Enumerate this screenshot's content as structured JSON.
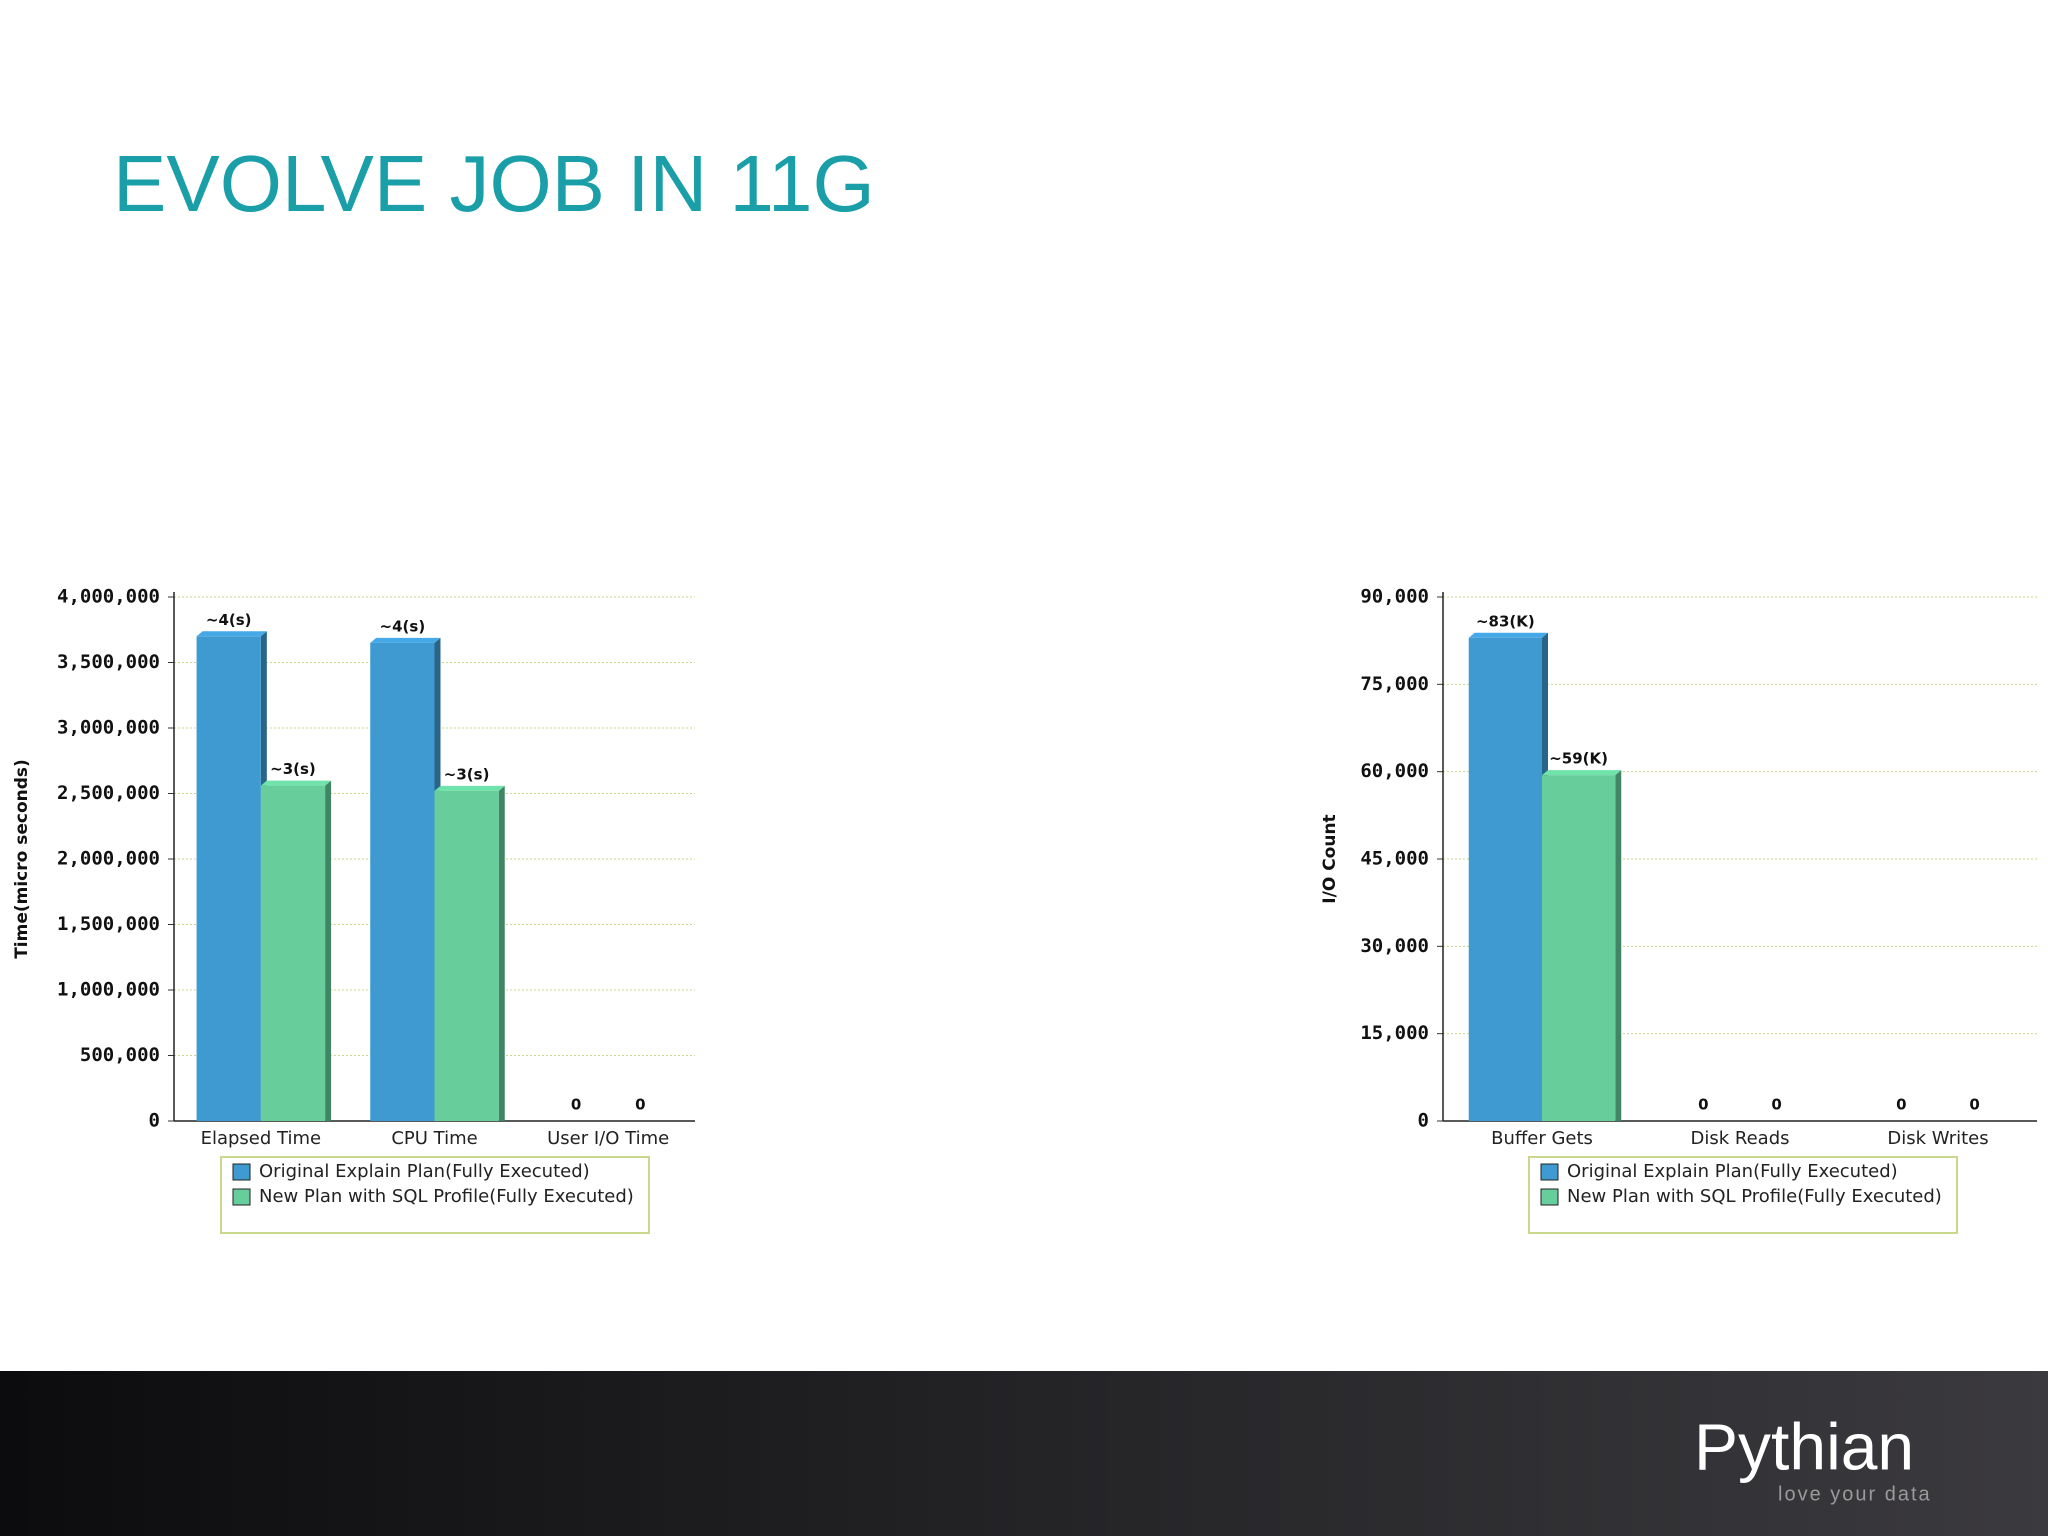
{
  "title": "EVOLVE JOB IN 11G",
  "chart_data": [
    {
      "type": "bar",
      "ylabel": "Time(micro seconds)",
      "categories": [
        "Elapsed Time",
        "CPU Time",
        "User I/O Time"
      ],
      "series": [
        {
          "name": "Original Explain Plan(Fully Executed)",
          "color": "#3f9ad2",
          "values": [
            3700000,
            3650000,
            0
          ],
          "value_labels": [
            "~4(s)",
            "~4(s)",
            "0"
          ]
        },
        {
          "name": "New Plan with SQL Profile(Fully Executed)",
          "color": "#66cd9b",
          "values": [
            2560000,
            2520000,
            0
          ],
          "value_labels": [
            "~3(s)",
            "~3(s)",
            "0"
          ]
        }
      ],
      "ylim": [
        0,
        4000000
      ],
      "yticks": [
        0,
        {
          "value": 500000,
          "label": "500,000"
        },
        {
          "value": 1000000,
          "label": "1,000,000"
        },
        {
          "value": 1500000,
          "label": "1,500,000"
        },
        {
          "value": 2000000,
          "label": "2,000,000"
        },
        {
          "value": 2500000,
          "label": "2,500,000"
        },
        {
          "value": 3000000,
          "label": "3,000,000"
        },
        {
          "value": 3500000,
          "label": "3,500,000"
        },
        {
          "value": 4000000,
          "label": "4,000,000"
        }
      ],
      "grid": true
    },
    {
      "type": "bar",
      "ylabel": "I/O Count",
      "categories": [
        "Buffer Gets",
        "Disk Reads",
        "Disk Writes"
      ],
      "series": [
        {
          "name": "Original Explain Plan(Fully Executed)",
          "color": "#3f9ad2",
          "values": [
            83000,
            0,
            0
          ],
          "value_labels": [
            "~83(K)",
            "0",
            "0"
          ]
        },
        {
          "name": "New Plan with SQL Profile(Fully Executed)",
          "color": "#66cd9b",
          "values": [
            59400,
            0,
            0
          ],
          "value_labels": [
            "~59(K)",
            "0",
            "0"
          ]
        }
      ],
      "ylim": [
        0,
        90000
      ],
      "yticks": [
        0,
        {
          "value": 15000,
          "label": "15,000"
        },
        {
          "value": 30000,
          "label": "30,000"
        },
        {
          "value": 45000,
          "label": "45,000"
        },
        {
          "value": 60000,
          "label": "60,000"
        },
        {
          "value": 75000,
          "label": "75,000"
        },
        {
          "value": 90000,
          "label": "90,000"
        }
      ],
      "grid": true
    }
  ],
  "footer": {
    "logo": "Pythian",
    "tagline": "love your data"
  }
}
